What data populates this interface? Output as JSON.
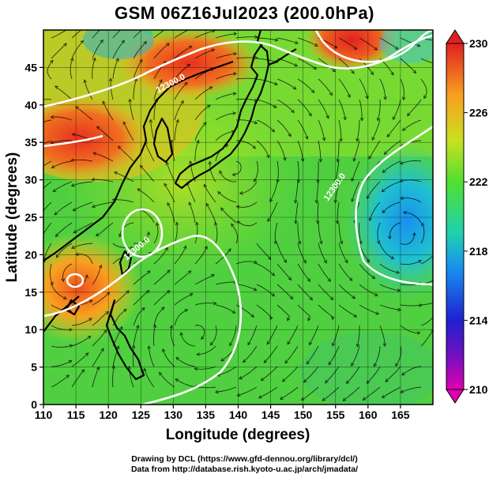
{
  "title": "GSM 06Z16Jul2023 (200.0hPa)",
  "map": {
    "x_axis_label": "Longitude (degrees)",
    "y_axis_label": "Latitude (degrees)",
    "x_ticks": [
      110,
      115,
      120,
      125,
      130,
      135,
      140,
      145,
      150,
      155,
      160,
      165
    ],
    "y_ticks": [
      0,
      5,
      10,
      15,
      20,
      25,
      30,
      35,
      40,
      45
    ],
    "lon_range": [
      110,
      170
    ],
    "lat_range": [
      0,
      50
    ],
    "grid": true,
    "contour_labels": [
      "12300.0",
      "12300.0",
      "12300.0"
    ]
  },
  "colorbar": {
    "ticks": [
      210,
      214,
      218,
      222,
      226,
      230
    ],
    "range": [
      210,
      230
    ],
    "colors": [
      "#e000b0",
      "#3010c0",
      "#1890f0",
      "#20d0b0",
      "#50e030",
      "#c8e020",
      "#f8b020",
      "#f05020",
      "#e02020"
    ]
  },
  "credits": {
    "line1": "Drawing by DCL (https://www.gfd-dennou.org/library/dcl/)",
    "line2": "Data from http://database.rish.kyoto-u.ac.jp/arch/jmadata/"
  }
}
